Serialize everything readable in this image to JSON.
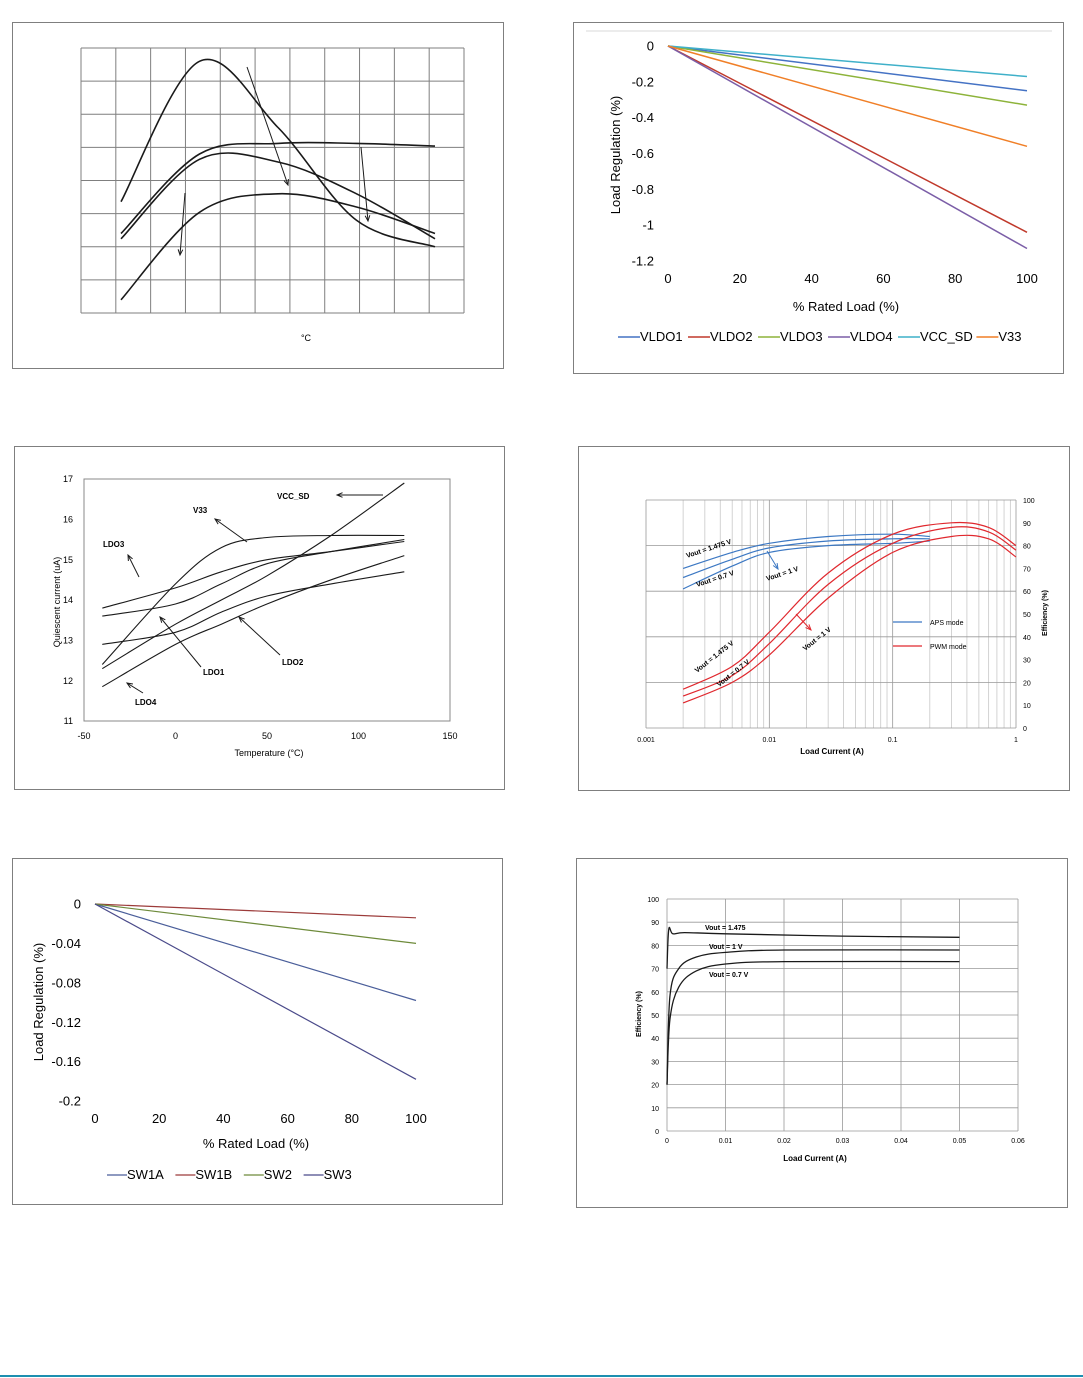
{
  "charts": [
    {
      "chart_data": {
        "type": "line",
        "xlabel": "°C",
        "ylabel": "",
        "grid": true,
        "series": [
          {
            "x": [
              0,
              25,
              50,
              75,
              100
            ],
            "y": [
              0.42,
              0.95,
              0.7,
              0.35,
              0.25
            ]
          },
          {
            "x": [
              0,
              25,
              50,
              75,
              100
            ],
            "y": [
              0.3,
              0.6,
              0.64,
              0.64,
              0.63
            ]
          },
          {
            "x": [
              0,
              25,
              50,
              75,
              100
            ],
            "y": [
              0.28,
              0.58,
              0.57,
              0.45,
              0.28
            ]
          },
          {
            "x": [
              0,
              25,
              50,
              75,
              100
            ],
            "y": [
              0.05,
              0.38,
              0.45,
              0.4,
              0.3
            ]
          }
        ]
      }
    },
    {
      "chart_data": {
        "type": "line",
        "xlabel": "% Rated Load (%)",
        "ylabel": "Load Regulation (%)",
        "xlim": [
          0,
          100
        ],
        "ylim": [
          -1.2,
          0
        ],
        "xticks": [
          "0",
          "20",
          "40",
          "60",
          "80",
          "100"
        ],
        "yticks": [
          "0",
          "-0.2",
          "-0.4",
          "-0.6",
          "-0.8",
          "-1",
          "-1.2"
        ],
        "legend": "bottom",
        "series": [
          {
            "name": "VLDO1",
            "color": "#4472c4",
            "x": [
              0,
              100
            ],
            "y": [
              0,
              -0.25
            ]
          },
          {
            "name": "VLDO2",
            "color": "#c0392b",
            "x": [
              0,
              100
            ],
            "y": [
              0,
              -1.04
            ]
          },
          {
            "name": "VLDO3",
            "color": "#8db33a",
            "x": [
              0,
              100
            ],
            "y": [
              0,
              -0.33
            ]
          },
          {
            "name": "VLDO4",
            "color": "#7b5ea7",
            "x": [
              0,
              100
            ],
            "y": [
              0,
              -1.13
            ]
          },
          {
            "name": "VCC_SD",
            "color": "#3fb0c9",
            "x": [
              0,
              100
            ],
            "y": [
              0,
              -0.17
            ]
          },
          {
            "name": "V33",
            "color": "#f07f27",
            "x": [
              0,
              100
            ],
            "y": [
              0,
              -0.56
            ]
          }
        ]
      }
    },
    {
      "chart_data": {
        "type": "line",
        "xlabel": "Temperature (°C)",
        "ylabel": "Quiescent current (uA)",
        "xlim": [
          -50,
          150
        ],
        "ylim": [
          11,
          17
        ],
        "xticks": [
          "-50",
          "0",
          "50",
          "100",
          "150"
        ],
        "yticks": [
          "11",
          "12",
          "13",
          "14",
          "15",
          "16",
          "17"
        ],
        "annotations": [
          "VCC_SD",
          "V33",
          "LDO3",
          "LDO1",
          "LDO2",
          "LDO4"
        ],
        "series": [
          {
            "x": [
              -40,
              0,
              25,
              50,
              85,
              125
            ],
            "y": [
              12.3,
              13.4,
              14.0,
              14.6,
              15.6,
              16.9
            ]
          },
          {
            "x": [
              -40,
              0,
              25,
              50,
              85,
              125
            ],
            "y": [
              12.4,
              14.4,
              15.3,
              15.55,
              15.6,
              15.6
            ]
          },
          {
            "x": [
              -40,
              0,
              25,
              50,
              85,
              125
            ],
            "y": [
              13.8,
              14.3,
              14.7,
              15.0,
              15.2,
              15.45
            ]
          },
          {
            "x": [
              -40,
              0,
              25,
              50,
              85,
              125
            ],
            "y": [
              13.6,
              13.9,
              14.4,
              14.9,
              15.2,
              15.5
            ]
          },
          {
            "x": [
              -40,
              0,
              25,
              50,
              85,
              125
            ],
            "y": [
              12.9,
              13.2,
              13.7,
              14.1,
              14.4,
              14.7
            ]
          },
          {
            "x": [
              -40,
              0,
              25,
              50,
              85,
              125
            ],
            "y": [
              11.85,
              12.9,
              13.4,
              13.9,
              14.5,
              15.1
            ]
          }
        ]
      }
    },
    {
      "chart_data": {
        "type": "line",
        "xlabel": "Load Current (A)",
        "ylabel": "Efficiency (%)",
        "xscale": "log",
        "xlim": [
          0.001,
          1
        ],
        "ylim": [
          0,
          100
        ],
        "xticks": [
          "0.001",
          "0.01",
          "0.1",
          "1"
        ],
        "yticks": [
          "0",
          "10",
          "20",
          "30",
          "40",
          "50",
          "60",
          "70",
          "80",
          "90",
          "100"
        ],
        "legend": "right",
        "legend_items": [
          {
            "name": "APS mode",
            "color": "#3c78c3"
          },
          {
            "name": "PWM mode",
            "color": "#e0282e"
          }
        ],
        "annotations": [
          "Vout = 1.475 V",
          "Vout = 0.7 V",
          "Vout = 1 V",
          "Vout = 1.475 V",
          "Vout = 0.7 V",
          "Vout = 1 V"
        ],
        "series": [
          {
            "mode": "APS",
            "x": [
              0.002,
              0.005,
              0.01,
              0.03,
              0.1,
              0.2
            ],
            "y": [
              70,
              77,
              81,
              84,
              85,
              84
            ]
          },
          {
            "mode": "APS",
            "x": [
              0.002,
              0.005,
              0.01,
              0.03,
              0.1,
              0.2
            ],
            "y": [
              66,
              74,
              79,
              82,
              83,
              83
            ]
          },
          {
            "mode": "APS",
            "x": [
              0.002,
              0.005,
              0.01,
              0.03,
              0.1,
              0.2
            ],
            "y": [
              61,
              71,
              77,
              80,
              81,
              82
            ]
          },
          {
            "mode": "PWM",
            "x": [
              0.002,
              0.005,
              0.01,
              0.03,
              0.1,
              0.3,
              0.6,
              1
            ],
            "y": [
              17,
              27,
              42,
              68,
              85,
              90,
              88,
              80
            ]
          },
          {
            "mode": "PWM",
            "x": [
              0.002,
              0.005,
              0.01,
              0.03,
              0.1,
              0.3,
              0.6,
              1
            ],
            "y": [
              14,
              23,
              37,
              63,
              81,
              88,
              86,
              78
            ]
          },
          {
            "mode": "PWM",
            "x": [
              0.002,
              0.005,
              0.01,
              0.03,
              0.1,
              0.3,
              0.6,
              1
            ],
            "y": [
              11,
              20,
              32,
              57,
              77,
              84,
              83,
              75
            ]
          }
        ]
      }
    },
    {
      "chart_data": {
        "type": "line",
        "xlabel": "% Rated Load (%)",
        "ylabel": "Load Regulation (%)",
        "xlim": [
          0,
          100
        ],
        "ylim": [
          -0.2,
          0
        ],
        "xticks": [
          "0",
          "20",
          "40",
          "60",
          "80",
          "100"
        ],
        "yticks": [
          "0",
          "-0.04",
          "-0.08",
          "-0.12",
          "-0.16",
          "-0.2"
        ],
        "legend": "bottom",
        "series": [
          {
            "name": "SW1A",
            "color": "#4a5e9a",
            "x": [
              0,
              100
            ],
            "y": [
              0,
              -0.098
            ]
          },
          {
            "name": "SW1B",
            "color": "#9c3b3a",
            "x": [
              0,
              100
            ],
            "y": [
              0,
              -0.014
            ]
          },
          {
            "name": "SW2",
            "color": "#6d8a3a",
            "x": [
              0,
              100
            ],
            "y": [
              0,
              -0.04
            ]
          },
          {
            "name": "SW3",
            "color": "#4a4a8a",
            "x": [
              0,
              100
            ],
            "y": [
              0,
              -0.178
            ]
          }
        ]
      }
    },
    {
      "chart_data": {
        "type": "line",
        "xlabel": "Load Current (A)",
        "ylabel": "Efficiency (%)",
        "xlim": [
          0,
          0.06
        ],
        "ylim": [
          0,
          100
        ],
        "xticks": [
          "0",
          "0.01",
          "0.02",
          "0.03",
          "0.04",
          "0.05",
          "0.06"
        ],
        "yticks": [
          "0",
          "10",
          "20",
          "30",
          "40",
          "50",
          "60",
          "70",
          "80",
          "90",
          "100"
        ],
        "annotations": [
          "Vout = 1.475",
          "Vout = 1 V",
          "Vout = 0.7 V"
        ],
        "series": [
          {
            "x": [
              0,
              0.0003,
              0.001,
              0.003,
              0.01,
              0.03,
              0.05
            ],
            "y": [
              70,
              87,
              85,
              85.5,
              85,
              84,
              83.5
            ]
          },
          {
            "x": [
              0,
              0.0005,
              0.002,
              0.005,
              0.01,
              0.02,
              0.05
            ],
            "y": [
              20,
              58,
              70,
              75,
              77,
              78,
              78
            ]
          },
          {
            "x": [
              0,
              0.0005,
              0.002,
              0.005,
              0.01,
              0.02,
              0.05
            ],
            "y": [
              20,
              48,
              62,
              69,
              72,
              73,
              73
            ]
          }
        ]
      }
    }
  ]
}
